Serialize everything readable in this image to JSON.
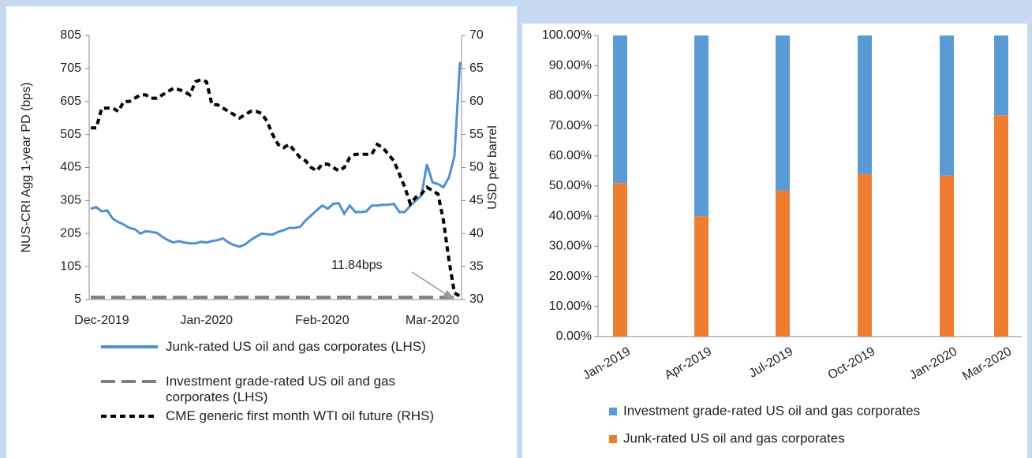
{
  "chart_data": [
    {
      "type": "line",
      "y_label": "NUS-CRI Agg 1-year PD (bps)",
      "y2_label": "USD per barrel",
      "annotation": "11.84bps",
      "categories": [
        null,
        null,
        "Dec-2019",
        null,
        null,
        null,
        null,
        null,
        null,
        null,
        null,
        null,
        null,
        null,
        null,
        null,
        null,
        null,
        null,
        null,
        null,
        "Jan-2020",
        null,
        null,
        null,
        null,
        null,
        null,
        null,
        null,
        null,
        null,
        null,
        null,
        null,
        null,
        null,
        null,
        null,
        null,
        null,
        null,
        "Feb-2020",
        null,
        null,
        null,
        null,
        null,
        null,
        null,
        null,
        null,
        null,
        null,
        null,
        null,
        null,
        null,
        null,
        null,
        null,
        null,
        "Mar-2020",
        null,
        null,
        null,
        null,
        null
      ],
      "ylim": [
        5,
        805
      ],
      "yticks": [
        5,
        105,
        205,
        305,
        405,
        505,
        605,
        705,
        805
      ],
      "y2lim": [
        30,
        70
      ],
      "y2ticks": [
        30,
        35,
        40,
        45,
        50,
        55,
        60,
        65,
        70
      ],
      "series": [
        {
          "name": "Junk-rated US oil and gas corporates (LHS)",
          "color": "#4f8fd6",
          "dash": "solid",
          "values": [
            280,
            285,
            272,
            275,
            250,
            240,
            232,
            222,
            218,
            205,
            212,
            210,
            207,
            195,
            185,
            178,
            182,
            178,
            175,
            175,
            180,
            178,
            182,
            185,
            190,
            178,
            170,
            165,
            172,
            185,
            195,
            205,
            203,
            202,
            210,
            215,
            222,
            222,
            225,
            245,
            260,
            275,
            290,
            280,
            295,
            297,
            265,
            290,
            270,
            270,
            272,
            290,
            290,
            292,
            292,
            295,
            270,
            270,
            290,
            305,
            320,
            415,
            360,
            355,
            345,
            375,
            440,
            725
          ]
        },
        {
          "name": "Investment grade-rated US oil and gas corporates (LHS)",
          "color": "#7f7f7f",
          "dash": "long",
          "values": [
            12,
            12,
            12,
            12,
            12,
            12,
            12,
            12,
            12,
            12,
            12,
            12,
            12,
            12,
            12,
            12,
            12,
            12,
            12,
            12,
            12,
            12,
            12,
            12,
            12,
            12,
            12,
            12,
            12,
            12,
            12,
            12,
            12,
            12,
            12,
            12,
            12,
            12,
            12,
            12,
            12,
            12,
            12,
            12,
            12,
            12,
            12,
            12,
            12,
            12,
            12,
            12,
            12,
            12,
            12,
            12,
            12,
            12,
            12,
            12,
            12,
            12,
            12,
            12,
            12,
            12,
            12,
            11.84
          ]
        },
        {
          "name": "CME generic first month WTI oil future (RHS)",
          "color": "#000000",
          "dash": "short",
          "axis": "y2",
          "values": [
            56,
            56,
            59,
            59,
            59,
            58.5,
            60,
            60,
            60.5,
            61,
            61,
            60.5,
            60.5,
            61,
            61.5,
            62,
            61.8,
            61.5,
            61,
            63,
            63.3,
            63,
            59.5,
            59.5,
            59,
            58.5,
            58,
            57.5,
            58,
            58.5,
            58.5,
            58.2,
            57,
            55,
            53.5,
            53,
            53.5,
            52.5,
            51.5,
            51,
            50,
            49.5,
            50.5,
            50.5,
            50,
            49.5,
            50,
            51.5,
            52,
            52,
            52,
            52,
            53.5,
            53,
            52,
            51,
            49,
            47,
            44.5,
            45.5,
            46,
            47,
            46.5,
            46,
            42,
            36,
            31,
            30.5
          ]
        }
      ]
    },
    {
      "type": "bar",
      "categories": [
        "Jan-2019",
        "Apr-2019",
        "Jul-2019",
        "Oct-2019",
        "Jan-2020",
        "Mar-2020"
      ],
      "ylim": [
        0,
        100
      ],
      "yticks": [
        {
          "value": 0,
          "label": "0.00%"
        },
        {
          "value": 10,
          "label": "10.00%"
        },
        {
          "value": 20,
          "label": "20.00%"
        },
        {
          "value": 30,
          "label": "30.00%"
        },
        {
          "value": 40,
          "label": "40.00%"
        },
        {
          "value": 50,
          "label": "50.00%"
        },
        {
          "value": 60,
          "label": "60.00%"
        },
        {
          "value": 70,
          "label": "70.00%"
        },
        {
          "value": 80,
          "label": "80.00%"
        },
        {
          "value": 90,
          "label": "90.00%"
        },
        {
          "value": 100,
          "label": "100.00%"
        }
      ],
      "stacked": true,
      "series": [
        {
          "name": "Investment grade-rated US oil and gas corporates",
          "color": "#5b9bd5",
          "values": [
            49,
            60,
            51.5,
            46,
            46.5,
            26.5
          ]
        },
        {
          "name": "Junk-rated US oil and gas corporates",
          "color": "#ed7d31",
          "values": [
            51,
            40,
            48.5,
            54,
            53.5,
            73.5
          ]
        }
      ]
    }
  ]
}
